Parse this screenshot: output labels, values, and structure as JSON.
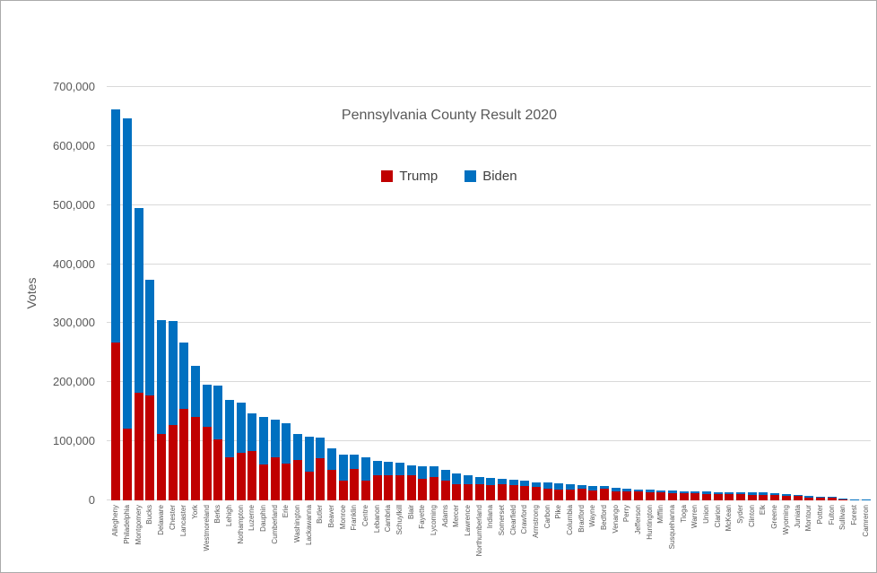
{
  "title": "Pennsylvania County Result 2020",
  "y_axis": {
    "label": "Votes",
    "tick_labels": [
      "0",
      "100,000",
      "200,000",
      "300,000",
      "400,000",
      "500,000",
      "600,000",
      "700,000"
    ],
    "min": 0,
    "max": 700000,
    "tick_step": 100000
  },
  "legend": [
    {
      "label": "Trump",
      "color": "#c00000"
    },
    {
      "label": "Biden",
      "color": "#0070c0"
    }
  ],
  "colors": {
    "trump": "#c00000",
    "biden": "#0070c0",
    "gridline": "#d9d9d9",
    "axis_text": "#595959",
    "frame_border": "#ababab"
  },
  "chart_data": {
    "type": "bar",
    "stacked": true,
    "title": "Pennsylvania County Result 2020",
    "xlabel": "",
    "ylabel": "Votes",
    "ylim": [
      0,
      700000
    ],
    "grid": "horizontal",
    "legend_position": "top-center",
    "categories": [
      "Allegheny",
      "Philadelphia",
      "Montgomery",
      "Bucks",
      "Delaware",
      "Chester",
      "Lancaster",
      "York",
      "Westmoreland",
      "Berks",
      "Lehigh",
      "Nothampton",
      "Luzerne",
      "Dauphin",
      "Cumberland",
      "Erie",
      "Washington",
      "Lackawanna",
      "Butler",
      "Beaver",
      "Monroe",
      "Franklin",
      "Centre",
      "Lebanon",
      "Cambria",
      "Schuylkill",
      "Blair",
      "Fayette",
      "Lycoming",
      "Adams",
      "Mercer",
      "Lawrence",
      "Northumberland",
      "Indiana",
      "Somerset",
      "Clearfield",
      "Crawford",
      "Armstrong",
      "Carbon",
      "Pike",
      "Columbia",
      "Bradford",
      "Wayne",
      "Bedford",
      "Venango",
      "Perry",
      "Jefferson",
      "Huntington",
      "Mifflin",
      "Susquehanna",
      "Tioga",
      "Warren",
      "Union",
      "Clarion",
      "McKean",
      "Syder",
      "Clinton",
      "Elk",
      "Greene",
      "Wyoming",
      "Juniata",
      "Montour",
      "Potter",
      "Fulton",
      "Sullivan",
      "Forest",
      "Camreron"
    ],
    "series": [
      {
        "name": "Trump",
        "color": "#c00000",
        "values": [
          267000,
          122000,
          182000,
          178000,
          112000,
          128000,
          155000,
          141000,
          125000,
          104000,
          73000,
          80000,
          83000,
          61000,
          73000,
          62000,
          68000,
          48000,
          71000,
          52000,
          34000,
          53500,
          34000,
          42000,
          43000,
          42500,
          42000,
          36000,
          40000,
          33500,
          28000,
          27500,
          28000,
          26000,
          27000,
          26500,
          24500,
          23500,
          19500,
          18000,
          18500,
          19500,
          17000,
          20000,
          15500,
          15500,
          15500,
          13500,
          13000,
          12000,
          12000,
          11500,
          10500,
          11000,
          10700,
          10500,
          9500,
          9500,
          9300,
          7800,
          7000,
          5200,
          5000,
          5000,
          1800,
          1000,
          800
        ]
      },
      {
        "name": "Biden",
        "color": "#0070c0",
        "values": [
          395000,
          525000,
          313000,
          196000,
          194000,
          175000,
          113000,
          87000,
          71000,
          91000,
          97000,
          85000,
          64000,
          80000,
          63000,
          68000,
          45000,
          60000,
          35000,
          36000,
          44000,
          24000,
          38500,
          25000,
          23000,
          21500,
          17500,
          22000,
          17000,
          18500,
          18000,
          14500,
          12000,
          12000,
          9000,
          8500,
          9500,
          7500,
          10500,
          11000,
          8500,
          6500,
          7500,
          4000,
          5500,
          4500,
          3500,
          4500,
          3500,
          4500,
          3500,
          4000,
          4200,
          3000,
          3300,
          3000,
          3800,
          3500,
          3200,
          3200,
          1900,
          2700,
          1000,
          800,
          900,
          600,
          400
        ]
      }
    ]
  }
}
